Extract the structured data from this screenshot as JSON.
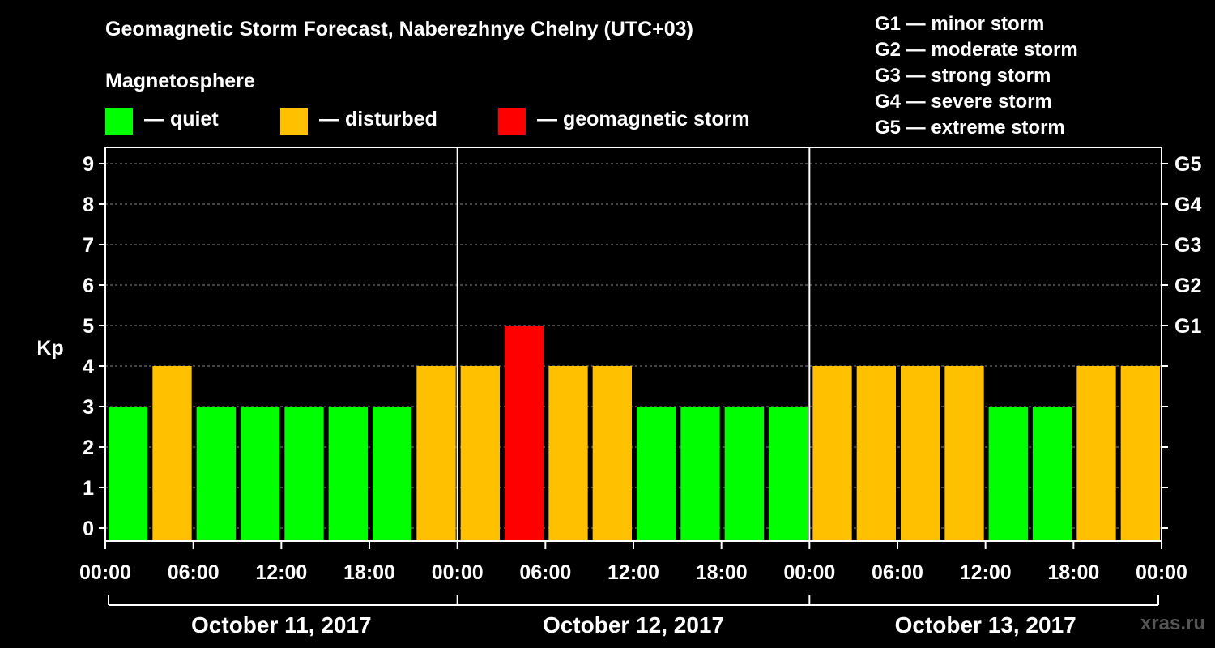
{
  "title": "Geomagnetic Storm Forecast, Naberezhnye Chelny (UTC+03)",
  "magnetosphere_heading": "Magnetosphere",
  "legend": [
    {
      "label": "— quiet",
      "color": "#00ff00"
    },
    {
      "label": "— disturbed",
      "color": "#ffc000"
    },
    {
      "label": "— geomagnetic storm",
      "color": "#ff0000"
    }
  ],
  "storm_scale": [
    "G1 — minor storm",
    "G2 — moderate storm",
    "G3 — strong storm",
    "G4 — severe storm",
    "G5 — extreme storm"
  ],
  "watermark": "xras.ru",
  "colors": {
    "quiet": "#00ff00",
    "disturbed": "#ffc000",
    "storm": "#ff0000",
    "background": "#000000",
    "grid": "#888888"
  },
  "chart_data": {
    "type": "bar",
    "ylabel": "Kp",
    "ylim": [
      0,
      9
    ],
    "yticks": [
      "0",
      "1",
      "2",
      "3",
      "4",
      "5",
      "6",
      "7",
      "8",
      "9"
    ],
    "right_axis_labels": [
      {
        "kp": 5,
        "label": "G1"
      },
      {
        "kp": 6,
        "label": "G2"
      },
      {
        "kp": 7,
        "label": "G3"
      },
      {
        "kp": 8,
        "label": "G4"
      },
      {
        "kp": 9,
        "label": "G5"
      }
    ],
    "x_tick_labels": [
      "00:00",
      "06:00",
      "12:00",
      "18:00",
      "00:00",
      "06:00",
      "12:00",
      "18:00",
      "00:00",
      "06:00",
      "12:00",
      "18:00",
      "00:00"
    ],
    "days": [
      "October 11, 2017",
      "October 12, 2017",
      "October 13, 2017"
    ],
    "bar_interval_hours": 3,
    "grid": "dashed horizontal",
    "values": [
      3,
      4,
      3,
      3,
      3,
      3,
      3,
      4,
      4,
      5,
      4,
      4,
      3,
      3,
      3,
      3,
      4,
      4,
      4,
      4,
      3,
      3,
      4,
      4
    ],
    "status": [
      "quiet",
      "disturbed",
      "quiet",
      "quiet",
      "quiet",
      "quiet",
      "quiet",
      "disturbed",
      "disturbed",
      "storm",
      "disturbed",
      "disturbed",
      "quiet",
      "quiet",
      "quiet",
      "quiet",
      "disturbed",
      "disturbed",
      "disturbed",
      "disturbed",
      "quiet",
      "quiet",
      "disturbed",
      "disturbed"
    ]
  }
}
